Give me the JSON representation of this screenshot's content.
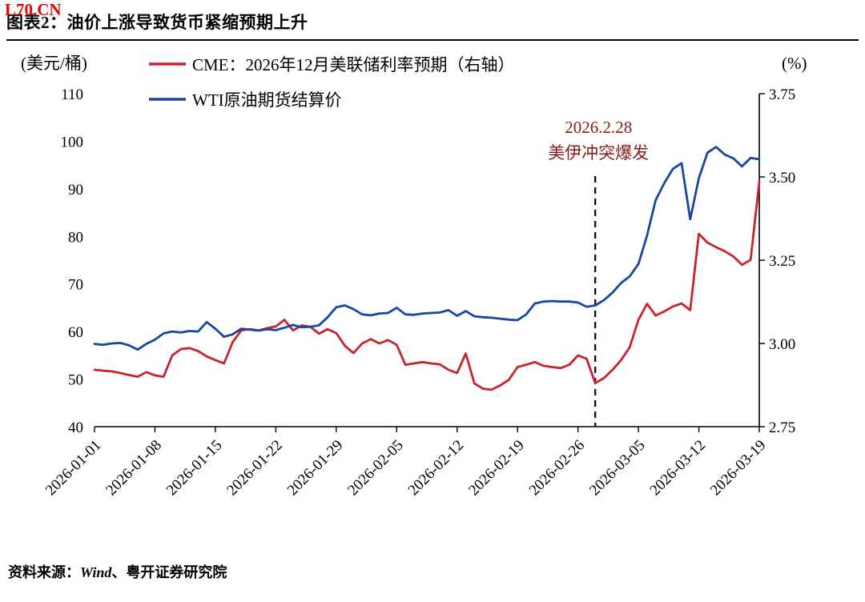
{
  "watermark": {
    "text": "L70.CN",
    "color": "#E60000"
  },
  "header": {
    "title": "图表2：油价上涨导致货币紧缩预期上升"
  },
  "footer": {
    "prefix": "资料来源：",
    "source_en": "Wind",
    "separator": "、",
    "source_cn": "粤开证券研究院"
  },
  "chart_data": {
    "type": "line",
    "title": "图表2：油价上涨导致货币紧缩预期上升",
    "left_axis": {
      "label": "(美元/桶)",
      "min": 40,
      "max": 110,
      "ticks": [
        110,
        100,
        90,
        80,
        70,
        60,
        50,
        40
      ]
    },
    "right_axis": {
      "label": "(%)",
      "min": 2.75,
      "max": 3.75,
      "ticks": [
        3.75,
        3.5,
        3.25,
        3.0,
        2.75
      ]
    },
    "x_range_days": 77,
    "x_ticks": [
      {
        "day": 0,
        "label": "2026-01-01"
      },
      {
        "day": 7,
        "label": "2026-01-08"
      },
      {
        "day": 14,
        "label": "2026-01-15"
      },
      {
        "day": 21,
        "label": "2026-01-22"
      },
      {
        "day": 28,
        "label": "2026-01-29"
      },
      {
        "day": 35,
        "label": "2026-02-05"
      },
      {
        "day": 42,
        "label": "2026-02-12"
      },
      {
        "day": 49,
        "label": "2026-02-19"
      },
      {
        "day": 56,
        "label": "2026-02-26"
      },
      {
        "day": 63,
        "label": "2026-03-05"
      },
      {
        "day": 70,
        "label": "2026-03-12"
      },
      {
        "day": 77,
        "label": "2026-03-19"
      }
    ],
    "annotation": {
      "line1": "2026.2.28",
      "line2": "美伊冲突爆发",
      "day": 58,
      "color": "#8B1A1A"
    },
    "legend_position": "top-left",
    "grid": false,
    "series": [
      {
        "name": "CME：2026年12月美联储利率预期（右轴）",
        "axis": "right",
        "color": "#C9232D",
        "points": [
          [
            0,
            2.921
          ],
          [
            1,
            2.918
          ],
          [
            2,
            2.916
          ],
          [
            3,
            2.911
          ],
          [
            4,
            2.905
          ],
          [
            5,
            2.9
          ],
          [
            6,
            2.914
          ],
          [
            7,
            2.904
          ],
          [
            8,
            2.9
          ],
          [
            9,
            2.964
          ],
          [
            10,
            2.983
          ],
          [
            11,
            2.986
          ],
          [
            12,
            2.977
          ],
          [
            13,
            2.961
          ],
          [
            14,
            2.95
          ],
          [
            15,
            2.94
          ],
          [
            16,
            3.004
          ],
          [
            17,
            3.039
          ],
          [
            18,
            3.043
          ],
          [
            19,
            3.039
          ],
          [
            20,
            3.046
          ],
          [
            21,
            3.051
          ],
          [
            22,
            3.071
          ],
          [
            23,
            3.039
          ],
          [
            24,
            3.054
          ],
          [
            25,
            3.05
          ],
          [
            26,
            3.029
          ],
          [
            27,
            3.043
          ],
          [
            28,
            3.031
          ],
          [
            29,
            2.993
          ],
          [
            30,
            2.971
          ],
          [
            31,
            3.0
          ],
          [
            32,
            3.013
          ],
          [
            33,
            3.0
          ],
          [
            34,
            3.01
          ],
          [
            35,
            2.996
          ],
          [
            36,
            2.936
          ],
          [
            37,
            2.94
          ],
          [
            38,
            2.944
          ],
          [
            39,
            2.94
          ],
          [
            40,
            2.937
          ],
          [
            41,
            2.921
          ],
          [
            42,
            2.911
          ],
          [
            43,
            2.97
          ],
          [
            44,
            2.88
          ],
          [
            45,
            2.864
          ],
          [
            46,
            2.861
          ],
          [
            47,
            2.874
          ],
          [
            48,
            2.891
          ],
          [
            49,
            2.929
          ],
          [
            50,
            2.936
          ],
          [
            51,
            2.944
          ],
          [
            52,
            2.933
          ],
          [
            53,
            2.929
          ],
          [
            54,
            2.926
          ],
          [
            55,
            2.936
          ],
          [
            56,
            2.964
          ],
          [
            57,
            2.954
          ],
          [
            58,
            2.881
          ],
          [
            59,
            2.896
          ],
          [
            60,
            2.921
          ],
          [
            61,
            2.95
          ],
          [
            62,
            2.989
          ],
          [
            63,
            3.071
          ],
          [
            64,
            3.119
          ],
          [
            65,
            3.084
          ],
          [
            66,
            3.096
          ],
          [
            67,
            3.111
          ],
          [
            68,
            3.12
          ],
          [
            69,
            3.1
          ],
          [
            70,
            3.329
          ],
          [
            71,
            3.303
          ],
          [
            72,
            3.289
          ],
          [
            73,
            3.277
          ],
          [
            74,
            3.261
          ],
          [
            75,
            3.236
          ],
          [
            76,
            3.251
          ],
          [
            77,
            3.486
          ]
        ]
      },
      {
        "name": "WTI原油期货结算价",
        "axis": "left",
        "color": "#17479E",
        "points": [
          [
            0,
            57.4
          ],
          [
            1,
            57.2
          ],
          [
            2,
            57.5
          ],
          [
            3,
            57.6
          ],
          [
            4,
            57.1
          ],
          [
            5,
            56.2
          ],
          [
            6,
            57.4
          ],
          [
            7,
            58.3
          ],
          [
            8,
            59.6
          ],
          [
            9,
            60.0
          ],
          [
            10,
            59.8
          ],
          [
            11,
            60.1
          ],
          [
            12,
            60.0
          ],
          [
            13,
            62.0
          ],
          [
            14,
            60.6
          ],
          [
            15,
            58.9
          ],
          [
            16,
            59.4
          ],
          [
            17,
            60.6
          ],
          [
            18,
            60.4
          ],
          [
            19,
            60.2
          ],
          [
            20,
            60.5
          ],
          [
            21,
            60.3
          ],
          [
            22,
            60.8
          ],
          [
            23,
            61.4
          ],
          [
            24,
            60.9
          ],
          [
            25,
            61.0
          ],
          [
            26,
            61.3
          ],
          [
            27,
            63.0
          ],
          [
            28,
            65.1
          ],
          [
            29,
            65.5
          ],
          [
            30,
            64.7
          ],
          [
            31,
            63.6
          ],
          [
            32,
            63.4
          ],
          [
            33,
            63.8
          ],
          [
            34,
            63.9
          ],
          [
            35,
            65.0
          ],
          [
            36,
            63.6
          ],
          [
            37,
            63.5
          ],
          [
            38,
            63.8
          ],
          [
            39,
            63.9
          ],
          [
            40,
            64.0
          ],
          [
            41,
            64.5
          ],
          [
            42,
            63.3
          ],
          [
            43,
            64.3
          ],
          [
            44,
            63.2
          ],
          [
            45,
            63.0
          ],
          [
            46,
            62.9
          ],
          [
            47,
            62.7
          ],
          [
            48,
            62.5
          ],
          [
            49,
            62.4
          ],
          [
            50,
            63.6
          ],
          [
            51,
            65.9
          ],
          [
            52,
            66.3
          ],
          [
            53,
            66.4
          ],
          [
            54,
            66.3
          ],
          [
            55,
            66.3
          ],
          [
            56,
            66.1
          ],
          [
            57,
            65.2
          ],
          [
            58,
            65.5
          ],
          [
            59,
            66.6
          ],
          [
            60,
            68.2
          ],
          [
            61,
            70.2
          ],
          [
            62,
            71.6
          ],
          [
            63,
            74.2
          ],
          [
            64,
            80.2
          ],
          [
            65,
            87.6
          ],
          [
            66,
            91.2
          ],
          [
            67,
            94.2
          ],
          [
            68,
            95.4
          ],
          [
            69,
            83.6
          ],
          [
            70,
            92.2
          ],
          [
            71,
            97.6
          ],
          [
            72,
            98.8
          ],
          [
            73,
            97.2
          ],
          [
            74,
            96.4
          ],
          [
            75,
            94.7
          ],
          [
            76,
            96.5
          ],
          [
            77,
            96.2
          ]
        ]
      }
    ]
  }
}
